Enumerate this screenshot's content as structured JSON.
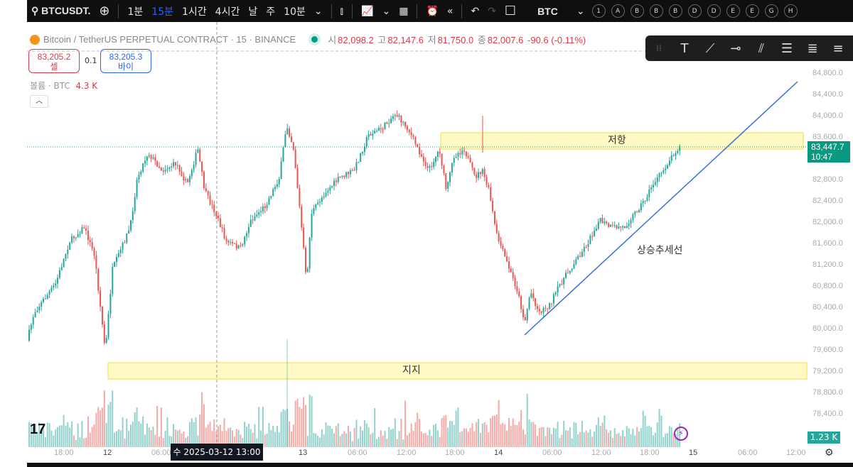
{
  "toolbar": {
    "symbol": "BTCUSDT.",
    "intervals": [
      "1분",
      "15분",
      "1시간",
      "4시간",
      "날",
      "주",
      "10분"
    ],
    "active_interval": "15분",
    "watch": "BTC",
    "circles": [
      "1",
      "A",
      "B",
      "B",
      "B",
      "D",
      "D",
      "E",
      "E",
      "G",
      "H"
    ]
  },
  "legend": {
    "title": "Bitcoin / TetherUS PERPETUAL CONTRACT · 15 · BINANCE",
    "o_label": "시",
    "o": "82,098.2",
    "h_label": "고",
    "h": "82,147.6",
    "l_label": "저",
    "l": "81,750.0",
    "c_label": "종",
    "c": "82,007.6",
    "change": "-90.6 (-0.11%)"
  },
  "trade": {
    "sell_price": "83,205.2",
    "sell_label": "셀",
    "spread": "0.1",
    "buy_price": "83,205.3",
    "buy_label": "바이"
  },
  "volume": {
    "label": "볼륨 · BTC",
    "value": "4.3 K",
    "current": "1.23 K"
  },
  "price_axis": [
    "84,800.0",
    "84,400.0",
    "84,000.0",
    "83,600.0",
    "82,800.0",
    "82,400.0",
    "82,000.0",
    "81,600.0",
    "81,200.0",
    "80,800.0",
    "80,400.0",
    "80,000.0",
    "79,600.0",
    "79,200.0",
    "78,800.0",
    "78,400.0"
  ],
  "time_axis": [
    "18:00",
    "12",
    "06:00",
    "13",
    "06:00",
    "12:00",
    "18:00",
    "14",
    "06:00",
    "12:00",
    "18:00",
    "15",
    "06:00",
    "12:00"
  ],
  "current_price": {
    "price": "83,447.7",
    "countdown": "10:47"
  },
  "crosshair_time": "수 2025-03-12   13:00",
  "annotations": {
    "resistance": "저항",
    "support": "지지",
    "trendline": "상승추세선"
  },
  "colors": {
    "up": "#26a69a",
    "down": "#ef5350",
    "trendline": "#3b6fd8",
    "zone": "#fff9c4"
  }
}
